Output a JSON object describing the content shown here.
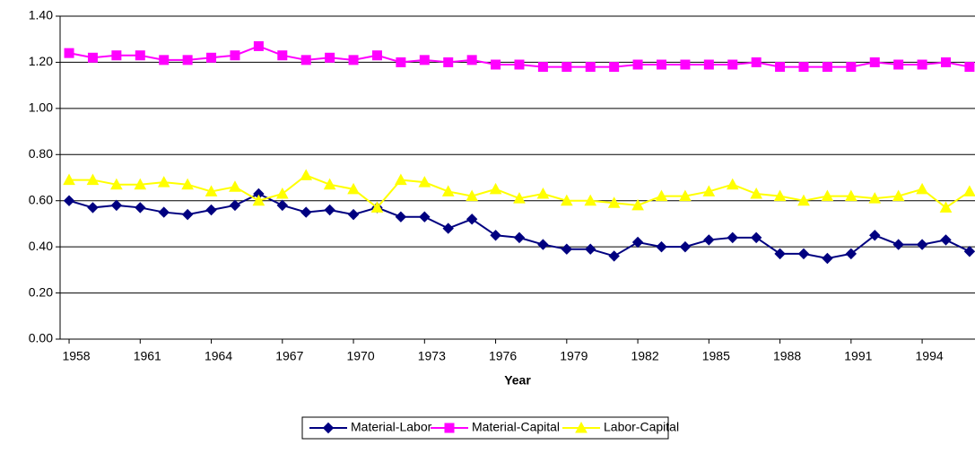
{
  "chart_data": {
    "type": "line",
    "x_label": "Year",
    "x": [
      1958,
      1959,
      1960,
      1961,
      1962,
      1963,
      1964,
      1965,
      1966,
      1967,
      1968,
      1969,
      1970,
      1971,
      1972,
      1973,
      1974,
      1975,
      1976,
      1977,
      1978,
      1979,
      1980,
      1981,
      1982,
      1983,
      1984,
      1985,
      1986,
      1987,
      1988,
      1989,
      1990,
      1991,
      1992,
      1993,
      1994,
      1995,
      1996
    ],
    "xlim": [
      1957.62,
      1996.23
    ],
    "xticks": [
      1958,
      1961,
      1964,
      1967,
      1970,
      1973,
      1976,
      1979,
      1982,
      1985,
      1988,
      1991,
      1994
    ],
    "ylim": [
      0,
      1.4
    ],
    "yticks": [
      {
        "value": 0,
        "label": "0.00"
      },
      {
        "value": 0.2,
        "label": "0.20"
      },
      {
        "value": 0.4,
        "label": "0.40"
      },
      {
        "value": 0.6,
        "label": "0.60"
      },
      {
        "value": 0.8,
        "label": "0.80"
      },
      {
        "value": 1.0,
        "label": "1.00"
      },
      {
        "value": 1.2,
        "label": "1.20"
      },
      {
        "value": 1.4,
        "label": "1.40"
      }
    ],
    "grid": true,
    "legend": "bottom",
    "series": [
      {
        "name": "Material-Labor",
        "color": "#000080",
        "marker": "diamond",
        "values": [
          0.6,
          0.57,
          0.58,
          0.57,
          0.55,
          0.54,
          0.56,
          0.58,
          0.63,
          0.58,
          0.55,
          0.56,
          0.54,
          0.57,
          0.53,
          0.53,
          0.48,
          0.52,
          0.45,
          0.44,
          0.41,
          0.39,
          0.39,
          0.36,
          0.42,
          0.4,
          0.4,
          0.43,
          0.44,
          0.44,
          0.37,
          0.37,
          0.35,
          0.37,
          0.45,
          0.41,
          0.41,
          0.43,
          0.38
        ]
      },
      {
        "name": "Material-Capital",
        "color": "#ff00ff",
        "marker": "square",
        "values": [
          1.24,
          1.22,
          1.23,
          1.23,
          1.21,
          1.21,
          1.22,
          1.23,
          1.27,
          1.23,
          1.21,
          1.22,
          1.21,
          1.23,
          1.2,
          1.21,
          1.2,
          1.21,
          1.19,
          1.19,
          1.18,
          1.18,
          1.18,
          1.18,
          1.19,
          1.19,
          1.19,
          1.19,
          1.19,
          1.2,
          1.18,
          1.18,
          1.18,
          1.18,
          1.2,
          1.19,
          1.19,
          1.2,
          1.18
        ]
      },
      {
        "name": "Labor-Capital",
        "color": "#ffff00",
        "marker": "triangle",
        "values": [
          0.69,
          0.69,
          0.67,
          0.67,
          0.68,
          0.67,
          0.64,
          0.66,
          0.6,
          0.63,
          0.71,
          0.67,
          0.65,
          0.57,
          0.69,
          0.68,
          0.64,
          0.62,
          0.65,
          0.61,
          0.63,
          0.6,
          0.6,
          0.59,
          0.58,
          0.62,
          0.62,
          0.64,
          0.67,
          0.63,
          0.62,
          0.6,
          0.62,
          0.62,
          0.61,
          0.62,
          0.65,
          0.57,
          0.64
        ]
      }
    ]
  }
}
